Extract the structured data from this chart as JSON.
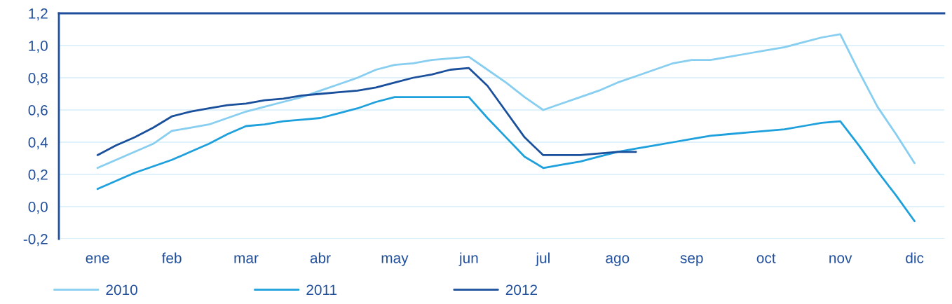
{
  "chart_data": {
    "type": "line",
    "ylim": [
      -0.2,
      1.2
    ],
    "yticks": [
      {
        "value": -0.2,
        "label": "-0,2"
      },
      {
        "value": 0,
        "label": "0,0"
      },
      {
        "value": 0.2,
        "label": "0,2"
      },
      {
        "value": 0.4,
        "label": "0,4"
      },
      {
        "value": 0.6,
        "label": "0,6"
      },
      {
        "value": 0.8,
        "label": "0,8"
      },
      {
        "value": 1.0,
        "label": "1,0"
      },
      {
        "value": 1.2,
        "label": "1,2"
      }
    ],
    "categories": [
      "ene",
      null,
      null,
      null,
      "feb",
      null,
      null,
      null,
      "mar",
      null,
      null,
      null,
      "abr",
      null,
      null,
      null,
      "may",
      null,
      null,
      null,
      "jun",
      null,
      null,
      null,
      "jul",
      null,
      null,
      null,
      "ago",
      null,
      null,
      null,
      "sep",
      null,
      null,
      null,
      "oct",
      null,
      null,
      null,
      "nov",
      null,
      null,
      null,
      "dic"
    ],
    "grid": "y",
    "legend": "bottom",
    "marker": "none",
    "line_style": "solid",
    "series": [
      {
        "name": "2010",
        "color": "#87cef0",
        "values": [
          0.24,
          0.29,
          0.34,
          0.39,
          0.47,
          0.49,
          0.51,
          0.55,
          0.59,
          0.62,
          0.65,
          0.68,
          0.72,
          0.76,
          0.8,
          0.85,
          0.88,
          0.89,
          0.91,
          0.92,
          0.93,
          0.85,
          0.77,
          0.68,
          0.6,
          0.64,
          0.68,
          0.72,
          0.77,
          0.81,
          0.85,
          0.89,
          0.91,
          0.91,
          0.93,
          0.95,
          0.97,
          0.99,
          1.02,
          1.05,
          1.07,
          0.84,
          0.62,
          0.45,
          0.27
        ]
      },
      {
        "name": "2011",
        "color": "#1ea0dc",
        "values": [
          0.11,
          0.16,
          0.21,
          0.25,
          0.29,
          0.34,
          0.39,
          0.45,
          0.5,
          0.51,
          0.53,
          0.54,
          0.55,
          0.58,
          0.61,
          0.65,
          0.68,
          0.68,
          0.68,
          0.68,
          0.68,
          0.55,
          0.43,
          0.31,
          0.24,
          0.26,
          0.28,
          0.31,
          0.34,
          0.36,
          0.38,
          0.4,
          0.42,
          0.44,
          0.45,
          0.46,
          0.47,
          0.48,
          0.5,
          0.52,
          0.53,
          0.38,
          0.22,
          0.07,
          -0.09
        ]
      },
      {
        "name": "2012",
        "color": "#1a4f9c",
        "values": [
          0.32,
          0.38,
          0.43,
          0.49,
          0.56,
          0.59,
          0.61,
          0.63,
          0.64,
          0.66,
          0.67,
          0.69,
          0.7,
          0.71,
          0.72,
          0.74,
          0.77,
          0.8,
          0.82,
          0.85,
          0.86,
          0.75,
          0.59,
          0.43,
          0.32,
          0.32,
          0.32,
          0.33,
          0.34,
          0.34,
          null,
          null,
          null,
          null,
          null,
          null,
          null,
          null,
          null,
          null,
          null,
          null,
          null,
          null,
          null
        ]
      }
    ]
  }
}
